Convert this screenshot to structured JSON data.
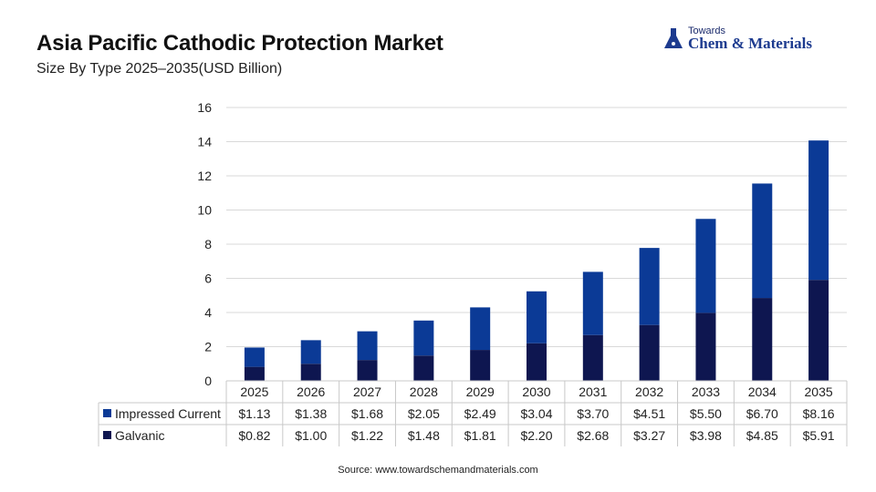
{
  "title": "Asia Pacific Cathodic Protection Market",
  "subtitle": "Size By Type 2025–2035(USD Billion)",
  "logo": {
    "top": "Towards",
    "main": "Chem & Materials"
  },
  "source": "Source: www.towardschemandmaterials.com",
  "colors": {
    "impressed": "#0b3a96",
    "galvanic": "#0e1650",
    "grid": "#d9d9d9",
    "text": "#222222"
  },
  "chart_data": {
    "type": "bar",
    "stacked": true,
    "categories": [
      "2025",
      "2026",
      "2027",
      "2028",
      "2029",
      "2030",
      "2031",
      "2032",
      "2033",
      "2034",
      "2035"
    ],
    "series": [
      {
        "name": "Galvanic",
        "values": [
          0.82,
          1.0,
          1.22,
          1.48,
          1.81,
          2.2,
          2.68,
          3.27,
          3.98,
          4.85,
          5.91
        ],
        "labels": [
          "$0.82",
          "$1.00",
          "$1.22",
          "$1.48",
          "$1.81",
          "$2.20",
          "$2.68",
          "$3.27",
          "$3.98",
          "$4.85",
          "$5.91"
        ]
      },
      {
        "name": "Impressed Current",
        "values": [
          1.13,
          1.38,
          1.68,
          2.05,
          2.49,
          3.04,
          3.7,
          4.51,
          5.5,
          6.7,
          8.16
        ],
        "labels": [
          "$1.13",
          "$1.38",
          "$1.68",
          "$2.05",
          "$2.49",
          "$3.04",
          "$3.70",
          "$4.51",
          "$5.50",
          "$6.70",
          "$8.16"
        ]
      }
    ],
    "table_order": [
      "Impressed Current",
      "Galvanic"
    ],
    "ylim": [
      0,
      16
    ],
    "yticks": [
      0,
      2,
      4,
      6,
      8,
      10,
      12,
      14,
      16
    ],
    "grid": true,
    "legend": "data table"
  }
}
